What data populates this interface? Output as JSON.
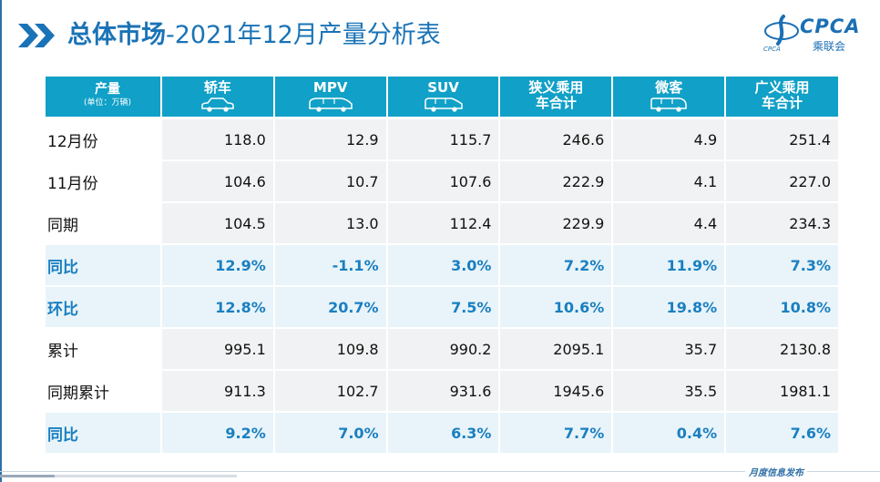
{
  "title": {
    "bold": "总体市场",
    "rest": "-2021年12月产量分析表"
  },
  "logo": {
    "brand": "CPCA",
    "sub": "乘联会",
    "small": "CPCA"
  },
  "table": {
    "header": {
      "label": "产量",
      "unit": "(单位：万辆)",
      "columns": [
        {
          "label": "轿车",
          "icon": "sedan-icon"
        },
        {
          "label": "MPV",
          "icon": "mpv-icon"
        },
        {
          "label": "SUV",
          "icon": "suv-icon"
        },
        {
          "label": "狭义乘用车合计",
          "icon": ""
        },
        {
          "label": "微客",
          "icon": "minivan-icon"
        },
        {
          "label": "广义乘用车合计",
          "icon": ""
        }
      ]
    },
    "rows": [
      {
        "label": "12月份",
        "highlight": false,
        "values": [
          "118.0",
          "12.9",
          "115.7",
          "246.6",
          "4.9",
          "251.4"
        ]
      },
      {
        "label": "11月份",
        "highlight": false,
        "values": [
          "104.6",
          "10.7",
          "107.6",
          "222.9",
          "4.1",
          "227.0"
        ]
      },
      {
        "label": "同期",
        "highlight": false,
        "values": [
          "104.5",
          "13.0",
          "112.4",
          "229.9",
          "4.4",
          "234.3"
        ]
      },
      {
        "label": "同比",
        "highlight": true,
        "values": [
          "12.9%",
          "-1.1%",
          "3.0%",
          "7.2%",
          "11.9%",
          "7.3%"
        ]
      },
      {
        "label": "环比",
        "highlight": true,
        "values": [
          "12.8%",
          "20.7%",
          "7.5%",
          "10.6%",
          "19.8%",
          "10.8%"
        ]
      },
      {
        "label": "累计",
        "highlight": false,
        "values": [
          "995.1",
          "109.8",
          "990.2",
          "2095.1",
          "35.7",
          "2130.8"
        ]
      },
      {
        "label": "同期累计",
        "highlight": false,
        "values": [
          "911.3",
          "102.7",
          "931.6",
          "1945.6",
          "35.5",
          "1981.1"
        ]
      },
      {
        "label": "同比",
        "highlight": true,
        "values": [
          "9.2%",
          "7.0%",
          "6.3%",
          "7.7%",
          "0.4%",
          "7.6%"
        ]
      }
    ]
  },
  "footer": {
    "text": "月度信息发布"
  },
  "colors": {
    "accent": "#1a73b6",
    "header_bg": "#11a0c7",
    "highlight_text": "#1a7fc1",
    "highlight_bg": "#e8f4f9",
    "cell_bg": "#f1f2f3"
  }
}
